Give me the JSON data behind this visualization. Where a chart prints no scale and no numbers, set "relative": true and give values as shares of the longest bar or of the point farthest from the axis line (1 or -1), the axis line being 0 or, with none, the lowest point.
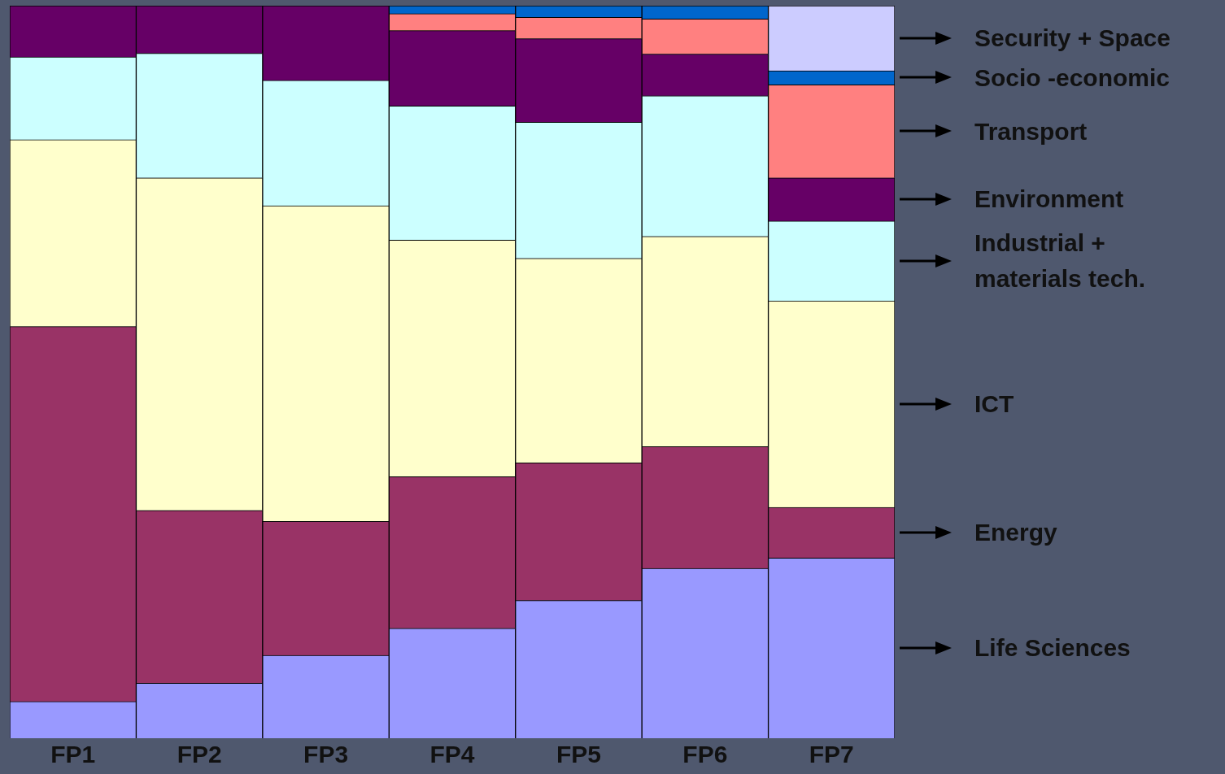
{
  "chart_data": {
    "type": "bar",
    "stacked": true,
    "relative": true,
    "categories": [
      "FP1",
      "FP2",
      "FP3",
      "FP4",
      "FP5",
      "FP6",
      "FP7"
    ],
    "series": [
      {
        "name": "Life Sciences",
        "color": "#9999ff",
        "values": [
          0.05,
          0.075,
          0.113,
          0.15,
          0.188,
          0.232,
          0.246
        ]
      },
      {
        "name": "Energy",
        "color": "#993366",
        "values": [
          0.512,
          0.236,
          0.183,
          0.207,
          0.188,
          0.166,
          0.069
        ]
      },
      {
        "name": "ICT",
        "color": "#ffffcc",
        "values": [
          0.255,
          0.454,
          0.431,
          0.323,
          0.279,
          0.287,
          0.282
        ]
      },
      {
        "name": "Industrial + materials tech.",
        "color": "#ccffff",
        "values": [
          0.113,
          0.17,
          0.171,
          0.183,
          0.186,
          0.192,
          0.109
        ]
      },
      {
        "name": "Environment",
        "color": "#660066",
        "values": [
          0.07,
          0.065,
          0.102,
          0.103,
          0.114,
          0.057,
          0.059
        ]
      },
      {
        "name": "Transport",
        "color": "#ff8080",
        "values": [
          null,
          null,
          null,
          0.023,
          0.029,
          0.048,
          0.127
        ]
      },
      {
        "name": "Socio -economic",
        "color": "#0066cc",
        "values": [
          null,
          null,
          null,
          0.011,
          0.016,
          0.018,
          0.019
        ]
      },
      {
        "name": "Security + Space",
        "color": "#ccccff",
        "values": [
          null,
          null,
          null,
          null,
          null,
          null,
          0.089
        ]
      }
    ]
  }
}
